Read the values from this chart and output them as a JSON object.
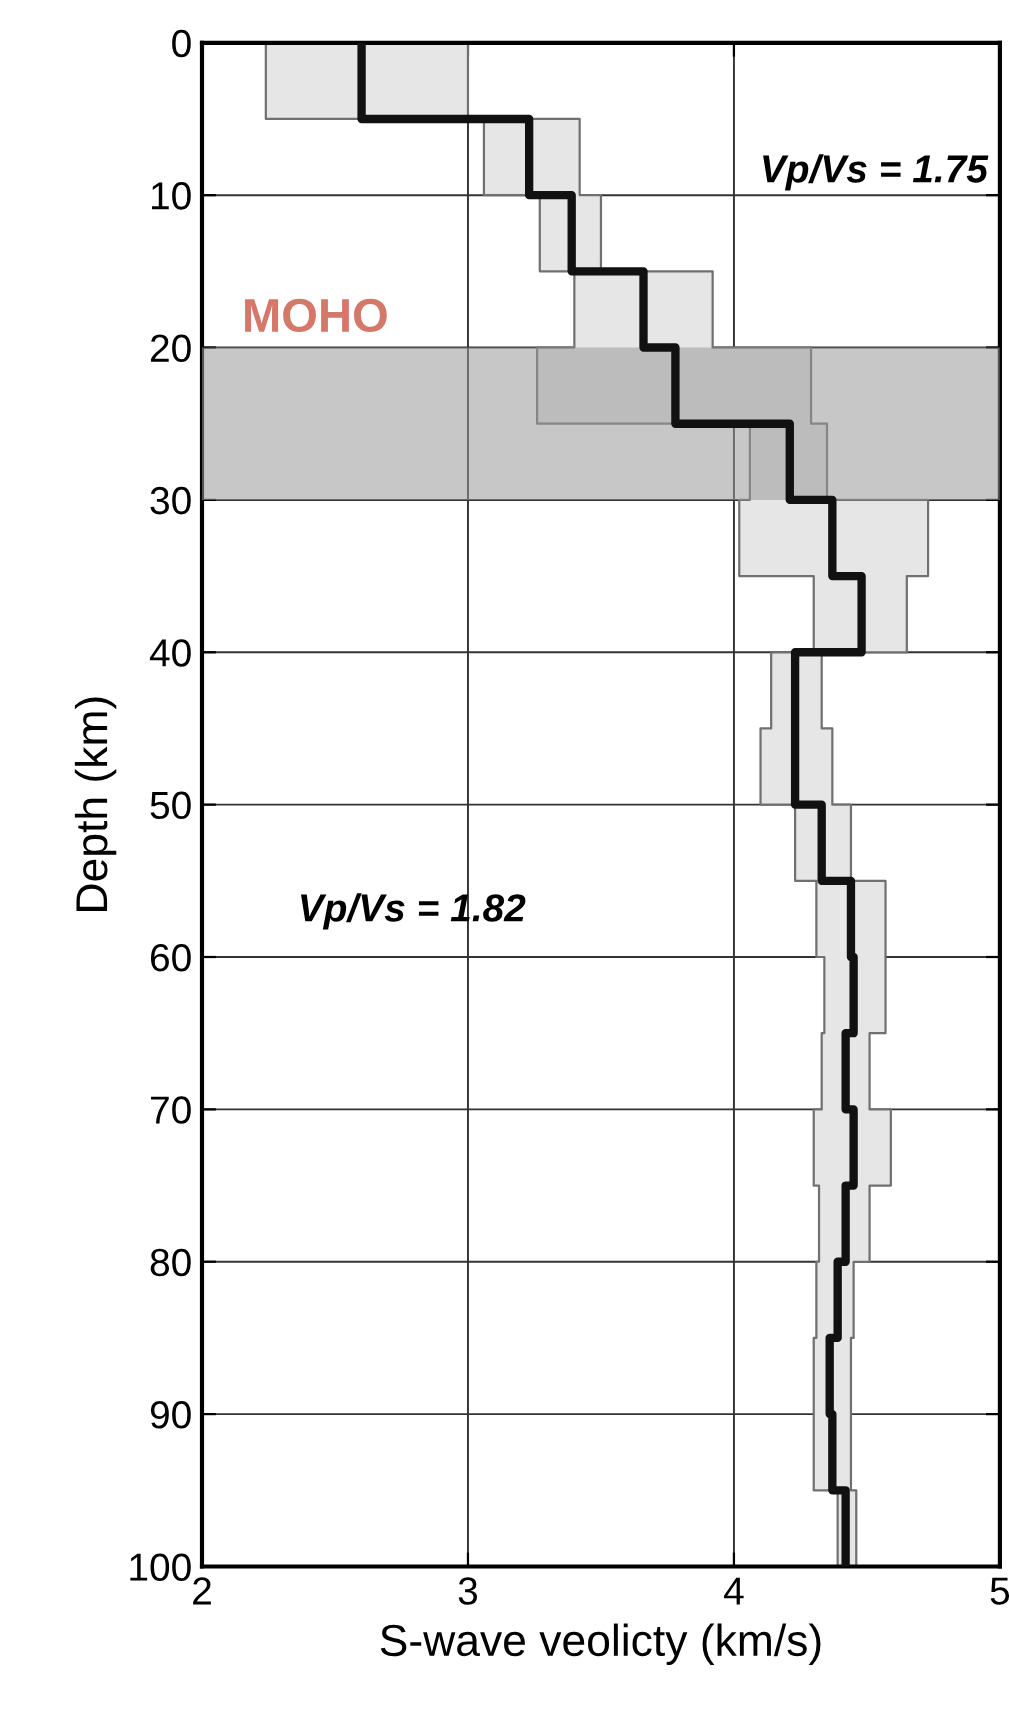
{
  "chart_data": {
    "type": "step",
    "orientation": "horizontal",
    "xlabel": "S-wave veolicty (km/s)",
    "ylabel": "Depth (km)",
    "x": [
      0,
      5,
      10,
      15,
      20,
      25,
      30,
      35,
      40,
      45,
      50,
      55,
      60,
      65,
      70,
      75,
      80,
      85,
      90,
      95,
      100
    ],
    "series": [
      {
        "color": "#111111",
        "values": [
          2.6,
          3.23,
          3.39,
          3.66,
          3.78,
          4.21,
          4.37,
          4.48,
          4.23,
          4.23,
          4.33,
          4.44,
          4.45,
          4.42,
          4.45,
          4.42,
          4.39,
          4.36,
          4.37,
          4.42,
          4.42
        ],
        "lower": [
          2.24,
          3.06,
          3.27,
          3.4,
          3.26,
          4.06,
          4.02,
          4.3,
          4.14,
          4.1,
          4.23,
          4.31,
          4.34,
          4.33,
          4.3,
          4.32,
          4.31,
          4.3,
          4.3,
          4.39,
          4.39
        ],
        "upper": [
          3.0,
          3.42,
          3.5,
          3.92,
          4.29,
          4.35,
          4.73,
          4.65,
          4.33,
          4.37,
          4.44,
          4.57,
          4.57,
          4.51,
          4.59,
          4.51,
          4.45,
          4.44,
          4.44,
          4.46,
          4.46
        ]
      }
    ],
    "ylim": [
      100,
      0
    ],
    "yticks": [
      0,
      10,
      20,
      30,
      40,
      50,
      60,
      70,
      80,
      90,
      100
    ],
    "xlim": [
      2,
      5
    ],
    "xticks": [
      2,
      3,
      4,
      5
    ],
    "grid": true,
    "bands": [
      {
        "axis": "y",
        "from": 20,
        "to": 30,
        "label": "MOHO",
        "color": "#999999"
      }
    ],
    "annotations": [
      "Vp/Vs = 1.75",
      "Vp/Vs = 1.82"
    ]
  }
}
